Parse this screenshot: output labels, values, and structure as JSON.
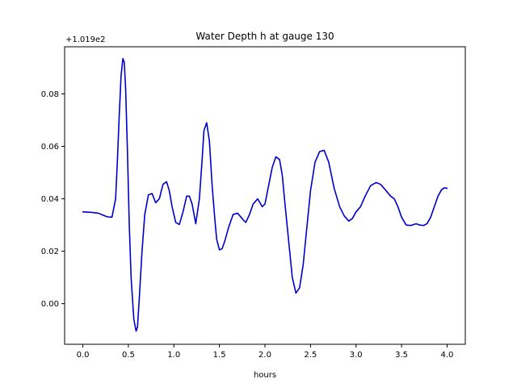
{
  "chart_data": {
    "type": "line",
    "title": "Water Depth h at gauge 130",
    "xlabel": "hours",
    "ylabel": "",
    "offset_label": "+1.019e2",
    "xlim": [
      -0.2,
      4.2
    ],
    "ylim": [
      -0.0155,
      0.098
    ],
    "xticks": [
      0.0,
      0.5,
      1.0,
      1.5,
      2.0,
      2.5,
      3.0,
      3.5,
      4.0
    ],
    "xtick_labels": [
      "0.0",
      "0.5",
      "1.0",
      "1.5",
      "2.0",
      "2.5",
      "3.0",
      "3.5",
      "4.0"
    ],
    "yticks": [
      0.0,
      0.02,
      0.04,
      0.06,
      0.08
    ],
    "ytick_labels": [
      "0.00",
      "0.02",
      "0.04",
      "0.06",
      "0.08"
    ],
    "grid": false,
    "series": [
      {
        "color": "#0000cc",
        "x": [
          0.0,
          0.1,
          0.17,
          0.22,
          0.27,
          0.32,
          0.36,
          0.38,
          0.4,
          0.42,
          0.44,
          0.455,
          0.47,
          0.49,
          0.51,
          0.53,
          0.56,
          0.585,
          0.6,
          0.62,
          0.65,
          0.68,
          0.72,
          0.76,
          0.8,
          0.84,
          0.88,
          0.92,
          0.95,
          0.98,
          1.02,
          1.06,
          1.1,
          1.14,
          1.17,
          1.2,
          1.24,
          1.28,
          1.31,
          1.33,
          1.36,
          1.39,
          1.42,
          1.45,
          1.47,
          1.5,
          1.53,
          1.56,
          1.6,
          1.65,
          1.7,
          1.76,
          1.79,
          1.83,
          1.87,
          1.92,
          1.97,
          2.0,
          2.04,
          2.08,
          2.12,
          2.16,
          2.19,
          2.22,
          2.26,
          2.3,
          2.34,
          2.38,
          2.42,
          2.46,
          2.5,
          2.55,
          2.6,
          2.65,
          2.7,
          2.76,
          2.82,
          2.87,
          2.92,
          2.96,
          3.0,
          3.05,
          3.1,
          3.16,
          3.22,
          3.27,
          3.32,
          3.38,
          3.42,
          3.46,
          3.5,
          3.55,
          3.6,
          3.66,
          3.7,
          3.74,
          3.78,
          3.82,
          3.86,
          3.9,
          3.94,
          3.97,
          4.0
        ],
        "values": [
          0.035,
          0.0348,
          0.0345,
          0.0338,
          0.0331,
          0.033,
          0.04,
          0.055,
          0.072,
          0.087,
          0.0935,
          0.092,
          0.082,
          0.058,
          0.03,
          0.01,
          -0.006,
          -0.0105,
          -0.009,
          0.002,
          0.02,
          0.034,
          0.0415,
          0.042,
          0.0385,
          0.04,
          0.0455,
          0.0465,
          0.043,
          0.037,
          0.031,
          0.0302,
          0.035,
          0.041,
          0.041,
          0.038,
          0.0305,
          0.04,
          0.055,
          0.066,
          0.069,
          0.062,
          0.045,
          0.032,
          0.0245,
          0.0205,
          0.021,
          0.024,
          0.029,
          0.034,
          0.0345,
          0.032,
          0.031,
          0.034,
          0.038,
          0.04,
          0.037,
          0.038,
          0.045,
          0.052,
          0.056,
          0.055,
          0.049,
          0.038,
          0.024,
          0.01,
          0.004,
          0.006,
          0.015,
          0.029,
          0.043,
          0.054,
          0.058,
          0.0585,
          0.054,
          0.044,
          0.037,
          0.0335,
          0.0315,
          0.0325,
          0.035,
          0.037,
          0.041,
          0.045,
          0.0462,
          0.0455,
          0.0435,
          0.041,
          0.04,
          0.037,
          0.033,
          0.03,
          0.0298,
          0.0305,
          0.03,
          0.0298,
          0.0305,
          0.033,
          0.037,
          0.041,
          0.0435,
          0.0442,
          0.044
        ]
      }
    ]
  }
}
